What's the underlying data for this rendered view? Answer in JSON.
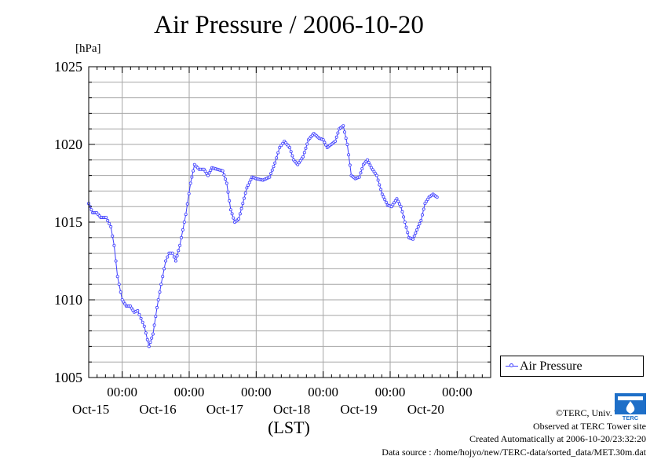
{
  "chart_data": {
    "type": "line",
    "title": "Air Pressure / 2006-10-20",
    "ylabel": "[hPa]",
    "xlabel": "(LST)",
    "ylim": [
      1005,
      1025
    ],
    "yticks": [
      1005,
      1010,
      1015,
      1020,
      1025
    ],
    "xlim": [
      0,
      6
    ],
    "x_unit": "days from 2006-10-14 12:00 LST",
    "xticks": [
      {
        "day": 0.5,
        "time": "00:00",
        "date": "Oct-15"
      },
      {
        "day": 1.5,
        "time": "00:00",
        "date": "Oct-16"
      },
      {
        "day": 2.5,
        "time": "00:00",
        "date": "Oct-17"
      },
      {
        "day": 3.5,
        "time": "00:00",
        "date": "Oct-18"
      },
      {
        "day": 4.5,
        "time": "00:00",
        "date": "Oct-19"
      },
      {
        "day": 5.5,
        "time": "00:00",
        "date": "Oct-20"
      }
    ],
    "grid": true,
    "legend_position": "right",
    "series": [
      {
        "name": "Air Pressure",
        "color": "#3c3cff",
        "points": [
          [
            0.0,
            1016.2
          ],
          [
            0.06,
            1015.6
          ],
          [
            0.12,
            1015.6
          ],
          [
            0.18,
            1015.3
          ],
          [
            0.26,
            1015.3
          ],
          [
            0.33,
            1014.7
          ],
          [
            0.38,
            1013.5
          ],
          [
            0.43,
            1011.5
          ],
          [
            0.5,
            1010.0
          ],
          [
            0.56,
            1009.6
          ],
          [
            0.62,
            1009.6
          ],
          [
            0.68,
            1009.2
          ],
          [
            0.73,
            1009.3
          ],
          [
            0.78,
            1008.8
          ],
          [
            0.83,
            1008.3
          ],
          [
            0.9,
            1007.0
          ],
          [
            0.96,
            1007.8
          ],
          [
            1.02,
            1009.5
          ],
          [
            1.08,
            1011.0
          ],
          [
            1.15,
            1012.5
          ],
          [
            1.2,
            1013.0
          ],
          [
            1.25,
            1013.0
          ],
          [
            1.3,
            1012.5
          ],
          [
            1.36,
            1013.5
          ],
          [
            1.45,
            1015.5
          ],
          [
            1.52,
            1017.5
          ],
          [
            1.58,
            1018.7
          ],
          [
            1.65,
            1018.4
          ],
          [
            1.72,
            1018.4
          ],
          [
            1.78,
            1018.0
          ],
          [
            1.84,
            1018.5
          ],
          [
            1.92,
            1018.4
          ],
          [
            2.0,
            1018.3
          ],
          [
            2.06,
            1017.5
          ],
          [
            2.12,
            1015.8
          ],
          [
            2.18,
            1015.0
          ],
          [
            2.24,
            1015.2
          ],
          [
            2.3,
            1016.2
          ],
          [
            2.36,
            1017.2
          ],
          [
            2.44,
            1017.9
          ],
          [
            2.5,
            1017.8
          ],
          [
            2.6,
            1017.7
          ],
          [
            2.7,
            1017.9
          ],
          [
            2.78,
            1018.8
          ],
          [
            2.85,
            1019.8
          ],
          [
            2.92,
            1020.2
          ],
          [
            3.0,
            1019.8
          ],
          [
            3.06,
            1019.0
          ],
          [
            3.12,
            1018.7
          ],
          [
            3.2,
            1019.2
          ],
          [
            3.28,
            1020.3
          ],
          [
            3.36,
            1020.7
          ],
          [
            3.44,
            1020.4
          ],
          [
            3.5,
            1020.3
          ],
          [
            3.56,
            1019.8
          ],
          [
            3.62,
            1020.0
          ],
          [
            3.68,
            1020.2
          ],
          [
            3.74,
            1021.0
          ],
          [
            3.8,
            1021.2
          ],
          [
            3.86,
            1020.0
          ],
          [
            3.92,
            1018.0
          ],
          [
            3.98,
            1017.8
          ],
          [
            4.04,
            1017.9
          ],
          [
            4.1,
            1018.7
          ],
          [
            4.16,
            1019.0
          ],
          [
            4.22,
            1018.5
          ],
          [
            4.3,
            1018.0
          ],
          [
            4.38,
            1016.8
          ],
          [
            4.46,
            1016.1
          ],
          [
            4.52,
            1016.0
          ],
          [
            4.6,
            1016.5
          ],
          [
            4.66,
            1016.0
          ],
          [
            4.72,
            1015.0
          ],
          [
            4.78,
            1014.0
          ],
          [
            4.84,
            1013.9
          ],
          [
            4.9,
            1014.5
          ],
          [
            4.96,
            1015.1
          ],
          [
            5.02,
            1016.2
          ],
          [
            5.08,
            1016.6
          ],
          [
            5.14,
            1016.8
          ],
          [
            5.2,
            1016.6
          ]
        ]
      }
    ]
  },
  "legend": {
    "label": "Air Pressure"
  },
  "credits": {
    "copyright": "©TERC, Univ. Tsukuba",
    "observed": "Observed at TERC Tower site",
    "created": "Created Automatically at 2006-10-20/23:32:20",
    "source": "Data source : /home/hojyo/new/TERC-data/sorted_data/MET.30m.dat"
  },
  "logo": {
    "text": "TERC"
  }
}
